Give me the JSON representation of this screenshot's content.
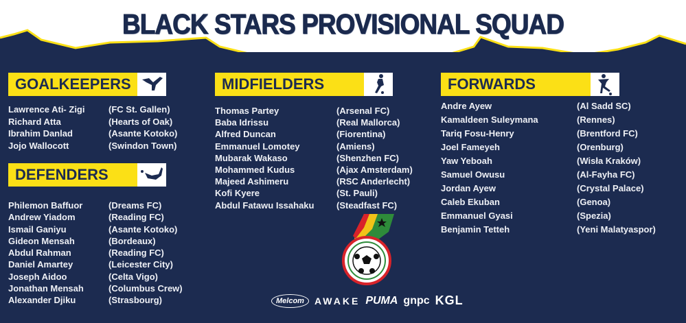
{
  "title": "BLACK STARS PROVISIONAL SQUAD",
  "colors": {
    "navy": "#1c2b50",
    "yellow": "#fbe016",
    "white": "#ffffff"
  },
  "sections": [
    {
      "label": "GOALKEEPERS",
      "icon": "goalkeeper-diving-icon",
      "players": [
        {
          "name": "Lawrence Ati- Zigi",
          "club": "(FC St. Gallen)"
        },
        {
          "name": "Richard Atta",
          "club": "(Hearts of Oak)"
        },
        {
          "name": "Ibrahim Danlad",
          "club": "(Asante Kotoko)"
        },
        {
          "name": "Jojo Wallocott",
          "club": "(Swindon Town)"
        }
      ]
    },
    {
      "label": "DEFENDERS",
      "icon": "defender-sliding-icon",
      "players": [
        {
          "name": "Philemon Baffuor",
          "club": "(Dreams FC)"
        },
        {
          "name": "Andrew Yiadom",
          "club": "(Reading FC)"
        },
        {
          "name": "Ismail Ganiyu",
          "club": "(Asante Kotoko)"
        },
        {
          "name": "Gideon Mensah",
          "club": "(Bordeaux)"
        },
        {
          "name": "Abdul Rahman",
          "club": "(Reading FC)"
        },
        {
          "name": "Daniel Amartey",
          "club": "(Leicester City)"
        },
        {
          "name": "Joseph Aidoo",
          "club": "(Celta Vigo)"
        },
        {
          "name": "Jonathan Mensah",
          "club": "(Columbus Crew)"
        },
        {
          "name": "Alexander Djiku",
          "club": "(Strasbourg)"
        }
      ]
    },
    {
      "label": "MIDFIELDERS",
      "icon": "midfielder-dribbling-icon",
      "players": [
        {
          "name": "Thomas Partey",
          "club": "(Arsenal FC)"
        },
        {
          "name": "Baba Idrissu",
          "club": "(Real Mallorca)"
        },
        {
          "name": "Alfred Duncan",
          "club": "(Fiorentina)"
        },
        {
          "name": "Emmanuel Lomotey",
          "club": "(Amiens)"
        },
        {
          "name": "Mubarak Wakaso",
          "club": "(Shenzhen FC)"
        },
        {
          "name": "Mohammed Kudus",
          "club": "(Ajax Amsterdam)"
        },
        {
          "name": "Majeed Ashimeru",
          "club": "(RSC Anderlecht)"
        },
        {
          "name": "Kofi Kyere",
          "club": "(St. Pauli)"
        },
        {
          "name": "Abdul Fatawu Issahaku",
          "club": "(Steadfast FC)"
        }
      ]
    },
    {
      "label": "FORWARDS",
      "icon": "forward-kicking-icon",
      "players": [
        {
          "name": "Andre Ayew",
          "club": "(Al Sadd SC)"
        },
        {
          "name": "Kamaldeen Suleymana",
          "club": "(Rennes)"
        },
        {
          "name": "Tariq Fosu-Henry",
          "club": "(Brentford FC)"
        },
        {
          "name": "Joel Fameyeh",
          "club": "(Orenburg)"
        },
        {
          "name": "Yaw Yeboah",
          "club": "(Wisła Kraków)"
        },
        {
          "name": "Samuel Owusu",
          "club": "(Al-Fayha FC)"
        },
        {
          "name": "Jordan Ayew",
          "club": "(Crystal Palace)"
        },
        {
          "name": "Caleb Ekuban",
          "club": "(Genoa)"
        },
        {
          "name": "Emmanuel Gyasi",
          "club": "(Spezia)"
        },
        {
          "name": "Benjamin Tetteh",
          "club": "(Yeni Malatyaspor)"
        }
      ]
    }
  ],
  "logo": {
    "text": "GHANA FOOTBALL ASSOCIATION"
  },
  "sponsors": [
    "Melcom",
    "AWAKE",
    "PUMA",
    "gnpc",
    "KGL"
  ]
}
